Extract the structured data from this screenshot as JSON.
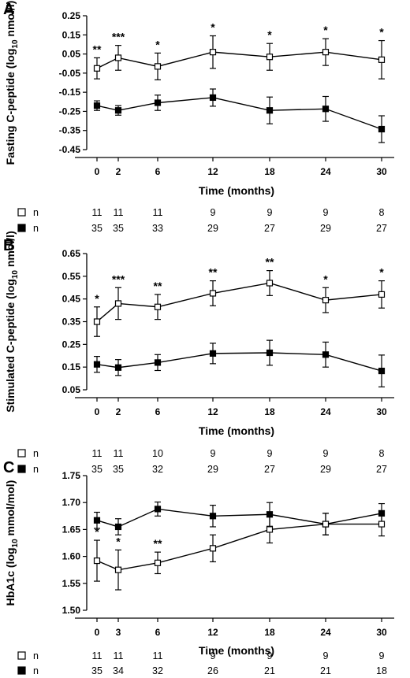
{
  "chart_data": [
    {
      "type": "line",
      "panel": "A",
      "xlabel": "Time (months)",
      "ylabel_main": "Fasting C-peptide (log",
      "ylabel_sub": "10",
      "ylabel_end": " nmol/l)",
      "ylim": [
        -0.45,
        0.25
      ],
      "yticks": [
        "0.25",
        "0.15",
        "0.05",
        "-0.05",
        "-0.15",
        "-0.25",
        "-0.35",
        "-0.45"
      ],
      "x": [
        0,
        2,
        6,
        12,
        18,
        24,
        30
      ],
      "xtick_labels": [
        "0",
        "2",
        "6",
        "12",
        "18",
        "24",
        "30"
      ],
      "series": [
        {
          "marker": "open",
          "values": [
            -0.025,
            0.03,
            -0.015,
            0.06,
            0.035,
            0.06,
            0.02
          ],
          "err": [
            0.055,
            0.065,
            0.07,
            0.085,
            0.07,
            0.07,
            0.1
          ]
        },
        {
          "marker": "filled",
          "values": [
            -0.22,
            -0.245,
            -0.205,
            -0.178,
            -0.245,
            -0.237,
            -0.343
          ],
          "err": [
            0.025,
            0.025,
            0.04,
            0.045,
            0.07,
            0.065,
            0.07
          ]
        }
      ],
      "significance": [
        "**",
        "***",
        "*",
        "*",
        "*",
        "*",
        "*"
      ],
      "n_rows": [
        {
          "marker": "open",
          "label": "n",
          "values": [
            "11",
            "11",
            "11",
            "9",
            "9",
            "9",
            "8"
          ]
        },
        {
          "marker": "filled",
          "label": "n",
          "values": [
            "35",
            "35",
            "33",
            "29",
            "27",
            "29",
            "27"
          ]
        }
      ]
    },
    {
      "type": "line",
      "panel": "B",
      "xlabel": "Time (months)",
      "ylabel_main": "Stimulated C-peptide (log",
      "ylabel_sub": "10",
      "ylabel_end": " nmol/l)",
      "ylim": [
        0.05,
        0.65
      ],
      "yticks": [
        "0.65",
        "0.55",
        "0.45",
        "0.35",
        "0.25",
        "0.15",
        "0.05"
      ],
      "x": [
        0,
        2,
        6,
        12,
        18,
        24,
        30
      ],
      "xtick_labels": [
        "0",
        "2",
        "6",
        "12",
        "18",
        "24",
        "30"
      ],
      "series": [
        {
          "marker": "open",
          "values": [
            0.35,
            0.43,
            0.415,
            0.475,
            0.52,
            0.445,
            0.47
          ],
          "err": [
            0.065,
            0.07,
            0.055,
            0.055,
            0.055,
            0.055,
            0.06
          ]
        },
        {
          "marker": "filled",
          "values": [
            0.162,
            0.148,
            0.17,
            0.21,
            0.213,
            0.205,
            0.133
          ],
          "err": [
            0.035,
            0.035,
            0.035,
            0.045,
            0.055,
            0.055,
            0.07
          ]
        }
      ],
      "significance": [
        "*",
        "***",
        "**",
        "**",
        "**",
        "*",
        "*"
      ],
      "n_rows": [
        {
          "marker": "open",
          "label": "n",
          "values": [
            "11",
            "11",
            "10",
            "9",
            "9",
            "9",
            "8"
          ]
        },
        {
          "marker": "filled",
          "label": "n",
          "values": [
            "35",
            "35",
            "32",
            "29",
            "27",
            "29",
            "27"
          ]
        }
      ]
    },
    {
      "type": "line",
      "panel": "C",
      "xlabel": "Time (months)",
      "ylabel_main": "HbA1c (log",
      "ylabel_sub": "10",
      "ylabel_end": " mmol/mol)",
      "ylim": [
        1.5,
        1.75
      ],
      "yticks": [
        "1.75",
        "1.70",
        "1.65",
        "1.60",
        "1.55",
        "1.50"
      ],
      "x": [
        0,
        3,
        6,
        12,
        18,
        24,
        30
      ],
      "xtick_labels": [
        "0",
        "3",
        "6",
        "12",
        "18",
        "24",
        "30"
      ],
      "series": [
        {
          "marker": "open",
          "values": [
            1.592,
            1.575,
            1.588,
            1.615,
            1.65,
            1.66,
            1.66
          ],
          "err": [
            0.038,
            0.037,
            0.02,
            0.025,
            0.025,
            0.02,
            0.022
          ]
        },
        {
          "marker": "filled",
          "values": [
            1.667,
            1.655,
            1.688,
            1.675,
            1.678,
            1.66,
            1.68
          ],
          "err": [
            0.015,
            0.015,
            0.013,
            0.02,
            0.022,
            0.02,
            0.018
          ]
        }
      ],
      "significance": [
        "*",
        "*",
        "**",
        "",
        "",
        "",
        ""
      ],
      "n_rows": [
        {
          "marker": "open",
          "label": "n",
          "values": [
            "11",
            "11",
            "11",
            "9",
            "9",
            "9",
            "9"
          ]
        },
        {
          "marker": "filled",
          "label": "n",
          "values": [
            "35",
            "34",
            "32",
            "26",
            "21",
            "21",
            "18"
          ]
        }
      ]
    }
  ]
}
